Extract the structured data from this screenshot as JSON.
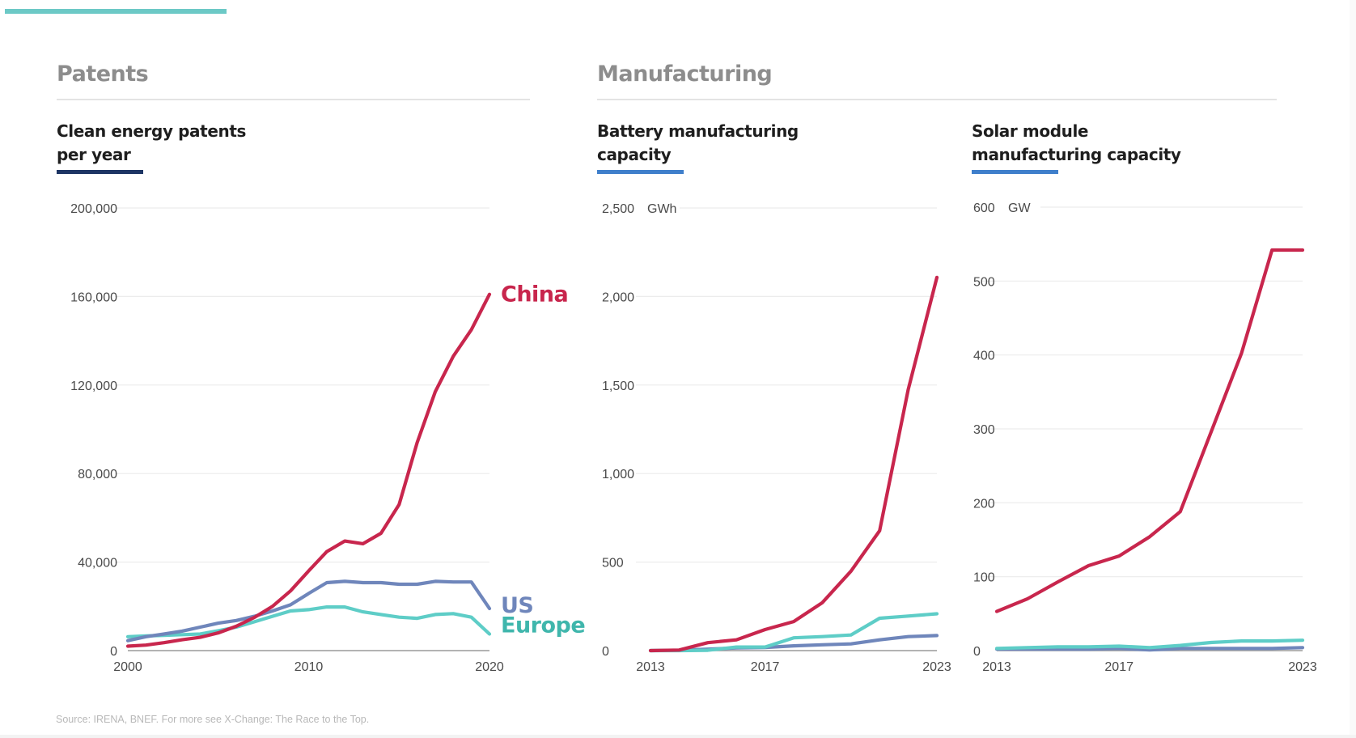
{
  "colors": {
    "china": "#c8264d",
    "us": "#6f86bb",
    "europe": "#5ecdc7",
    "europe_label": "#3fb6ac",
    "grid": "#ececec",
    "axis": "#9a9a9a",
    "tick_text": "#4a4a4a",
    "top_bar": "#6cc9c6",
    "underline_patents": "#1d3564",
    "underline_manufacturing": "#3f7fcb"
  },
  "sections": {
    "patents": "Patents",
    "manufacturing": "Manufacturing"
  },
  "footer": {
    "source": "Source: IRENA, BNEF. For more see X-Change: The Race to the Top."
  },
  "chart_data": [
    {
      "id": "patents",
      "type": "line",
      "title": "Clean energy patents\nper year",
      "xlabel": "",
      "ylabel": "",
      "unit": "",
      "x": [
        2000,
        2001,
        2002,
        2003,
        2004,
        2005,
        2006,
        2007,
        2008,
        2009,
        2010,
        2011,
        2012,
        2013,
        2014,
        2015,
        2016,
        2017,
        2018,
        2019,
        2020
      ],
      "xticks": [
        "2000",
        "2010",
        "2020"
      ],
      "xtick_values": [
        2000,
        2010,
        2020
      ],
      "ylim": [
        0,
        200000
      ],
      "yticks": [
        0,
        40000,
        80000,
        120000,
        160000,
        200000
      ],
      "ytick_labels": [
        "0",
        "40,000",
        "80,000",
        "120,000",
        "160,000",
        "200,000"
      ],
      "grid": true,
      "legend": "direct-labels-right",
      "series": [
        {
          "name": "China",
          "key": "china",
          "values": [
            2000,
            2500,
            3600,
            4900,
            6000,
            8000,
            11000,
            15000,
            20000,
            27000,
            36000,
            44700,
            49500,
            48300,
            53000,
            66000,
            94000,
            117000,
            133000,
            145000,
            161000
          ]
        },
        {
          "name": "US",
          "key": "us",
          "values": [
            4500,
            6300,
            7500,
            8800,
            10600,
            12400,
            13600,
            15500,
            17900,
            20700,
            25800,
            30700,
            31300,
            30700,
            30700,
            30000,
            30000,
            31300,
            31000,
            31000,
            19000
          ]
        },
        {
          "name": "Europe",
          "key": "europe",
          "values": [
            6300,
            6600,
            6900,
            7200,
            7500,
            9000,
            10600,
            13000,
            15500,
            17900,
            18500,
            19700,
            19700,
            17500,
            16300,
            15100,
            14600,
            16300,
            16700,
            15100,
            7500
          ]
        }
      ],
      "labels": [
        {
          "text": "China",
          "key": "china"
        },
        {
          "text": "US",
          "key": "us"
        },
        {
          "text": "Europe",
          "key": "europe"
        }
      ]
    },
    {
      "id": "battery",
      "type": "line",
      "title": "Battery manufacturing\ncapacity",
      "xlabel": "",
      "ylabel": "",
      "unit": "GWh",
      "x": [
        2013,
        2014,
        2015,
        2016,
        2017,
        2018,
        2019,
        2020,
        2021,
        2022,
        2023
      ],
      "xticks": [
        "2013",
        "2017",
        "2023"
      ],
      "xtick_values": [
        2013,
        2017,
        2023
      ],
      "ylim": [
        0,
        2500
      ],
      "yticks": [
        0,
        500,
        1000,
        1500,
        2000,
        2500
      ],
      "ytick_labels": [
        "0",
        "500",
        "1,000",
        "1,500",
        "2,000",
        "2,500"
      ],
      "grid": true,
      "legend": "none",
      "series": [
        {
          "name": "China",
          "key": "china",
          "values": [
            0,
            3,
            45,
            61,
            119,
            164,
            271,
            449,
            677,
            1476,
            2108
          ]
        },
        {
          "name": "Europe",
          "key": "europe",
          "values": [
            0,
            0,
            2,
            20,
            20,
            72,
            79,
            88,
            183,
            195,
            208
          ]
        },
        {
          "name": "US",
          "key": "us",
          "values": [
            0,
            2,
            8,
            15,
            18,
            27,
            33,
            38,
            61,
            79,
            85
          ]
        }
      ]
    },
    {
      "id": "solar",
      "type": "line",
      "title": "Solar module\nmanufacturing capacity",
      "xlabel": "",
      "ylabel": "",
      "unit": "GW",
      "x": [
        2013,
        2014,
        2015,
        2016,
        2017,
        2018,
        2019,
        2020,
        2021,
        2022,
        2023
      ],
      "xticks": [
        "2013",
        "2017",
        "2023"
      ],
      "xtick_values": [
        2013,
        2017,
        2023
      ],
      "ylim": [
        0,
        600
      ],
      "yticks": [
        0,
        100,
        200,
        300,
        400,
        500,
        600
      ],
      "ytick_labels": [
        "0",
        "100",
        "200",
        "300",
        "400",
        "500",
        "600"
      ],
      "grid": true,
      "legend": "none",
      "series": [
        {
          "name": "China",
          "key": "china",
          "values": [
            53,
            70,
            93,
            115,
            128,
            154,
            188,
            295,
            402,
            542,
            542
          ]
        },
        {
          "name": "Europe",
          "key": "europe",
          "values": [
            3,
            4,
            5,
            5,
            6,
            4,
            7,
            11,
            13,
            13,
            14
          ]
        },
        {
          "name": "US",
          "key": "us",
          "values": [
            2,
            2,
            2,
            2,
            3,
            1,
            3,
            3,
            3,
            3,
            4
          ]
        }
      ]
    }
  ]
}
